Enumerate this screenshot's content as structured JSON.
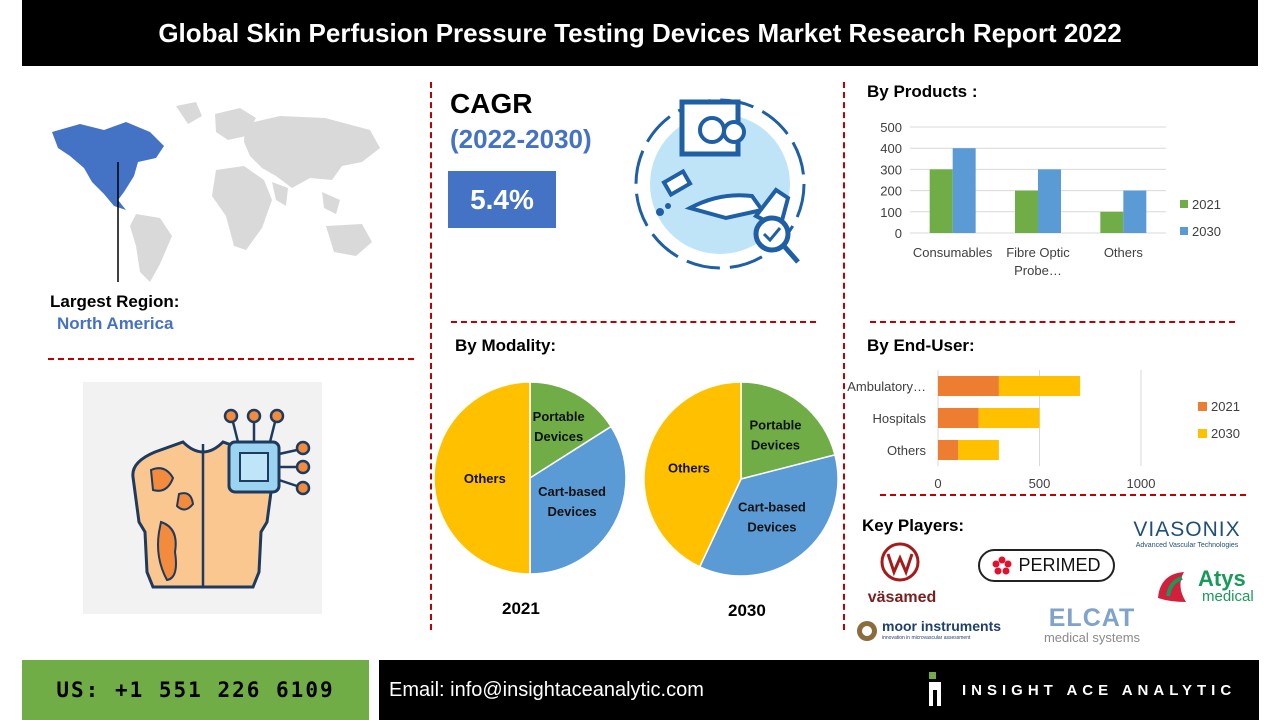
{
  "title": "Global Skin Perfusion Pressure Testing Devices Market Research Report 2022",
  "region": {
    "label": "Largest Region:",
    "value": "North America"
  },
  "cagr": {
    "title": "CAGR",
    "years": "(2022-2030)",
    "value": "5.4%"
  },
  "sections": {
    "products": "By Products :",
    "modality": "By Modality:",
    "end_user": "By End-User:",
    "key_players": "Key Players:"
  },
  "chart_data": [
    {
      "type": "bar",
      "title": "By Products :",
      "categories": [
        "Consumables",
        "Fibre Optic Probe…",
        "Others"
      ],
      "category_lines": [
        [
          "Consumables"
        ],
        [
          "Fibre Optic",
          "Probe…"
        ],
        [
          "Others"
        ]
      ],
      "series": [
        {
          "name": "2021",
          "values": [
            300,
            200,
            100
          ],
          "color": "#70ad47"
        },
        {
          "name": "2030",
          "values": [
            400,
            300,
            200
          ],
          "color": "#5b9bd5"
        }
      ],
      "ylim": [
        0,
        500
      ],
      "yticks": [
        0,
        100,
        200,
        300,
        400,
        500
      ],
      "grid": true,
      "legend": "right"
    },
    {
      "type": "pie",
      "title": "2021",
      "slices": [
        {
          "label": "Portable Devices",
          "lines": [
            "Portable",
            "Devices"
          ],
          "value": 16,
          "color": "#70ad47"
        },
        {
          "label": "Cart-based Devices",
          "lines": [
            "Cart-based",
            "Devices"
          ],
          "value": 34,
          "color": "#5b9bd5"
        },
        {
          "label": "Others",
          "lines": [
            "Others"
          ],
          "value": 50,
          "color": "#ffc000"
        }
      ]
    },
    {
      "type": "pie",
      "title": "2030",
      "slices": [
        {
          "label": "Portable Devices",
          "lines": [
            "Portable",
            "Devices"
          ],
          "value": 21,
          "color": "#70ad47"
        },
        {
          "label": "Cart-based Devices",
          "lines": [
            "Cart-based",
            "Devices"
          ],
          "value": 36,
          "color": "#5b9bd5"
        },
        {
          "label": "Others",
          "lines": [
            "Others"
          ],
          "value": 43,
          "color": "#ffc000"
        }
      ]
    },
    {
      "type": "bar",
      "orientation": "horizontal",
      "stacked": true,
      "title": "By End-User:",
      "categories": [
        "Ambulatory…",
        "Hospitals",
        "Others"
      ],
      "series": [
        {
          "name": "2021",
          "values": [
            300,
            200,
            100
          ],
          "color": "#ed7d31"
        },
        {
          "name": "2030",
          "values": [
            400,
            300,
            200
          ],
          "color": "#ffc000"
        }
      ],
      "xlim": [
        0,
        1000
      ],
      "xticks": [
        0,
        500,
        1000
      ],
      "legend": "right"
    }
  ],
  "players": {
    "vasamed": "väsamed",
    "perimed": "PERIMED",
    "viasonix": "VIASONIX",
    "viasonix_tag": "Advanced Vascular Technologies",
    "atys_1": "Atys",
    "atys_2": "medical",
    "moor": "moor instruments",
    "moor_tag": "innovation in microvascular assessment",
    "elcat_1": "ELCAT",
    "elcat_2": "medical systems"
  },
  "footer": {
    "phone": "US: +1 551 226 6109",
    "email": "Email: info@insightaceanalytic.com",
    "brand": "INSIGHT ACE ANALYTIC"
  },
  "colors": {
    "accent": "#4472c4",
    "dash": "#c00000",
    "green": "#70ad47"
  }
}
